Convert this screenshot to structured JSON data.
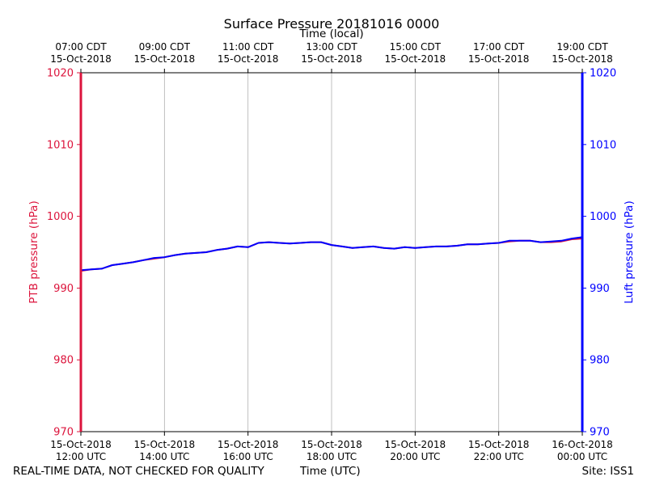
{
  "chart_data": {
    "type": "line",
    "title": "Surface Pressure 20181016 0000",
    "xlabel": "Time (UTC)",
    "xlabel_top": "Time (local)",
    "ylabel_left": "PTB pressure (hPa)",
    "ylabel_right": "Luft pressure (hPa)",
    "ylim": [
      970,
      1020
    ],
    "yticks": [
      970,
      980,
      990,
      1000,
      1010,
      1020
    ],
    "xlim_hours_utc": [
      12,
      24
    ],
    "grid": "vertical",
    "bottom_ticks": [
      {
        "hour": 12,
        "date": "15-Oct-2018",
        "time": "12:00 UTC"
      },
      {
        "hour": 14,
        "date": "15-Oct-2018",
        "time": "14:00 UTC"
      },
      {
        "hour": 16,
        "date": "15-Oct-2018",
        "time": "16:00 UTC"
      },
      {
        "hour": 18,
        "date": "15-Oct-2018",
        "time": "18:00 UTC"
      },
      {
        "hour": 20,
        "date": "15-Oct-2018",
        "time": "20:00 UTC"
      },
      {
        "hour": 22,
        "date": "15-Oct-2018",
        "time": "22:00 UTC"
      },
      {
        "hour": 24,
        "date": "16-Oct-2018",
        "time": "00:00 UTC"
      }
    ],
    "top_ticks": [
      {
        "hour": 12,
        "time": "07:00 CDT",
        "date": "15-Oct-2018"
      },
      {
        "hour": 14,
        "time": "09:00 CDT",
        "date": "15-Oct-2018"
      },
      {
        "hour": 16,
        "time": "11:00 CDT",
        "date": "15-Oct-2018"
      },
      {
        "hour": 18,
        "time": "13:00 CDT",
        "date": "15-Oct-2018"
      },
      {
        "hour": 20,
        "time": "15:00 CDT",
        "date": "15-Oct-2018"
      },
      {
        "hour": 22,
        "time": "17:00 CDT",
        "date": "15-Oct-2018"
      },
      {
        "hour": 24,
        "time": "19:00 CDT",
        "date": "15-Oct-2018"
      }
    ],
    "series": [
      {
        "name": "PTB pressure",
        "color": "#dc143c",
        "x": [
          12.0,
          12.25,
          12.5,
          12.75,
          13.0,
          13.25,
          13.5,
          13.75,
          14.0,
          14.25,
          14.5,
          14.75,
          15.0,
          15.25,
          15.5,
          15.75,
          16.0,
          16.25,
          16.5,
          16.75,
          17.0,
          17.25,
          17.5,
          17.75,
          18.0,
          18.25,
          18.5,
          18.75,
          19.0,
          19.25,
          19.5,
          19.75,
          20.0,
          20.25,
          20.5,
          20.75,
          21.0,
          21.25,
          21.5,
          21.75,
          22.0,
          22.25,
          22.5,
          22.75,
          23.0,
          23.25,
          23.5,
          23.75,
          24.0
        ],
        "y": [
          992.4,
          992.6,
          992.7,
          993.2,
          993.4,
          993.6,
          993.9,
          994.1,
          994.3,
          994.6,
          994.8,
          994.9,
          995.0,
          995.3,
          995.5,
          995.8,
          995.7,
          996.3,
          996.4,
          996.3,
          996.2,
          996.3,
          996.4,
          996.4,
          996.0,
          995.8,
          995.6,
          995.7,
          995.8,
          995.6,
          995.5,
          995.7,
          995.6,
          995.7,
          995.8,
          995.8,
          995.9,
          996.1,
          996.1,
          996.2,
          996.3,
          996.5,
          996.6,
          996.6,
          996.4,
          996.4,
          996.5,
          996.8,
          996.9
        ]
      },
      {
        "name": "Luft pressure",
        "color": "#0000ff",
        "x": [
          12.0,
          12.25,
          12.5,
          12.75,
          13.0,
          13.25,
          13.5,
          13.75,
          14.0,
          14.25,
          14.5,
          14.75,
          15.0,
          15.25,
          15.5,
          15.75,
          16.0,
          16.25,
          16.5,
          16.75,
          17.0,
          17.25,
          17.5,
          17.75,
          18.0,
          18.25,
          18.5,
          18.75,
          19.0,
          19.25,
          19.5,
          19.75,
          20.0,
          20.25,
          20.5,
          20.75,
          21.0,
          21.25,
          21.5,
          21.75,
          22.0,
          22.25,
          22.5,
          22.75,
          23.0,
          23.25,
          23.5,
          23.75,
          24.0
        ],
        "y": [
          992.5,
          992.6,
          992.7,
          993.2,
          993.4,
          993.6,
          993.9,
          994.2,
          994.3,
          994.6,
          994.8,
          994.9,
          995.0,
          995.3,
          995.5,
          995.8,
          995.7,
          996.3,
          996.4,
          996.3,
          996.2,
          996.3,
          996.4,
          996.4,
          996.0,
          995.8,
          995.6,
          995.7,
          995.8,
          995.6,
          995.5,
          995.7,
          995.6,
          995.7,
          995.8,
          995.8,
          995.9,
          996.1,
          996.1,
          996.2,
          996.3,
          996.6,
          996.6,
          996.6,
          996.4,
          996.5,
          996.6,
          996.9,
          997.1
        ]
      }
    ]
  },
  "footer": {
    "note": "REAL-TIME DATA, NOT CHECKED FOR QUALITY",
    "site": "Site: ISS1"
  },
  "colors": {
    "left_axis": "#dc143c",
    "right_axis": "#0000ff",
    "grid": "#b0b0b0"
  }
}
